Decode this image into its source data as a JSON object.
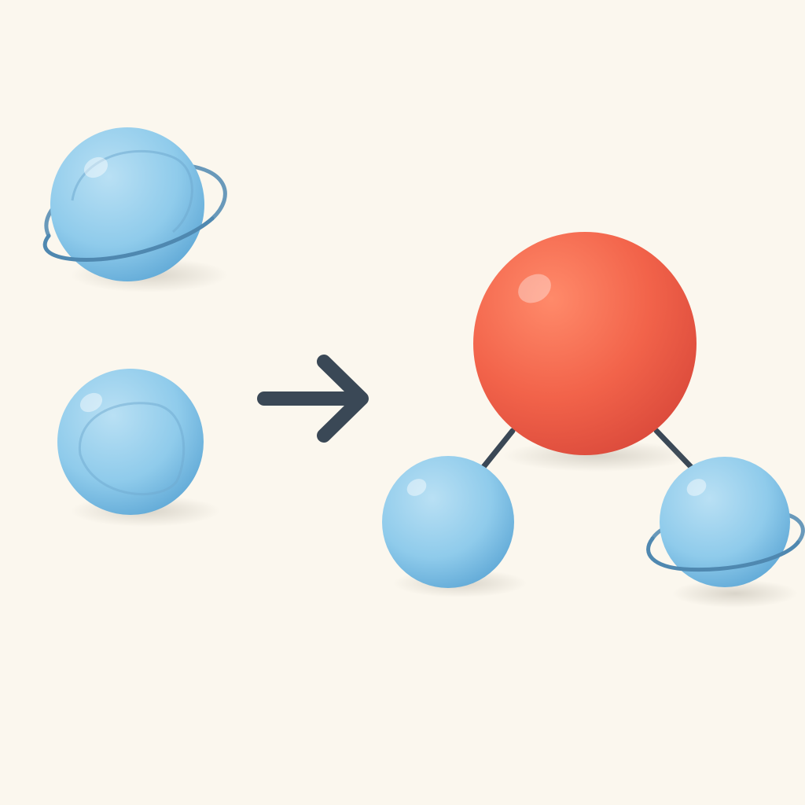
{
  "colors": {
    "background": "#FBF7EE",
    "hydrogen_fill": "#8FCBEB",
    "hydrogen_light": "#B9E0F4",
    "hydrogen_dark": "#5FA8D6",
    "orbit_ring": "#4F88B0",
    "oxygen_fill": "#F2634A",
    "oxygen_light": "#FF8A6A",
    "oxygen_dark": "#D9483A",
    "arrow": "#3A4856",
    "bond": "#3A4856"
  },
  "diagram": {
    "reactants": [
      {
        "element": "hydrogen",
        "has_orbit_ring": true
      },
      {
        "element": "hydrogen",
        "has_orbit_ring": false
      }
    ],
    "arrow": {
      "direction": "right"
    },
    "product": {
      "central_atom": {
        "element": "oxygen"
      },
      "bonded_atoms": [
        {
          "element": "hydrogen",
          "side": "left",
          "has_orbit_ring": false
        },
        {
          "element": "hydrogen",
          "side": "right",
          "has_orbit_ring": true
        }
      ],
      "bond_count": 2
    }
  }
}
